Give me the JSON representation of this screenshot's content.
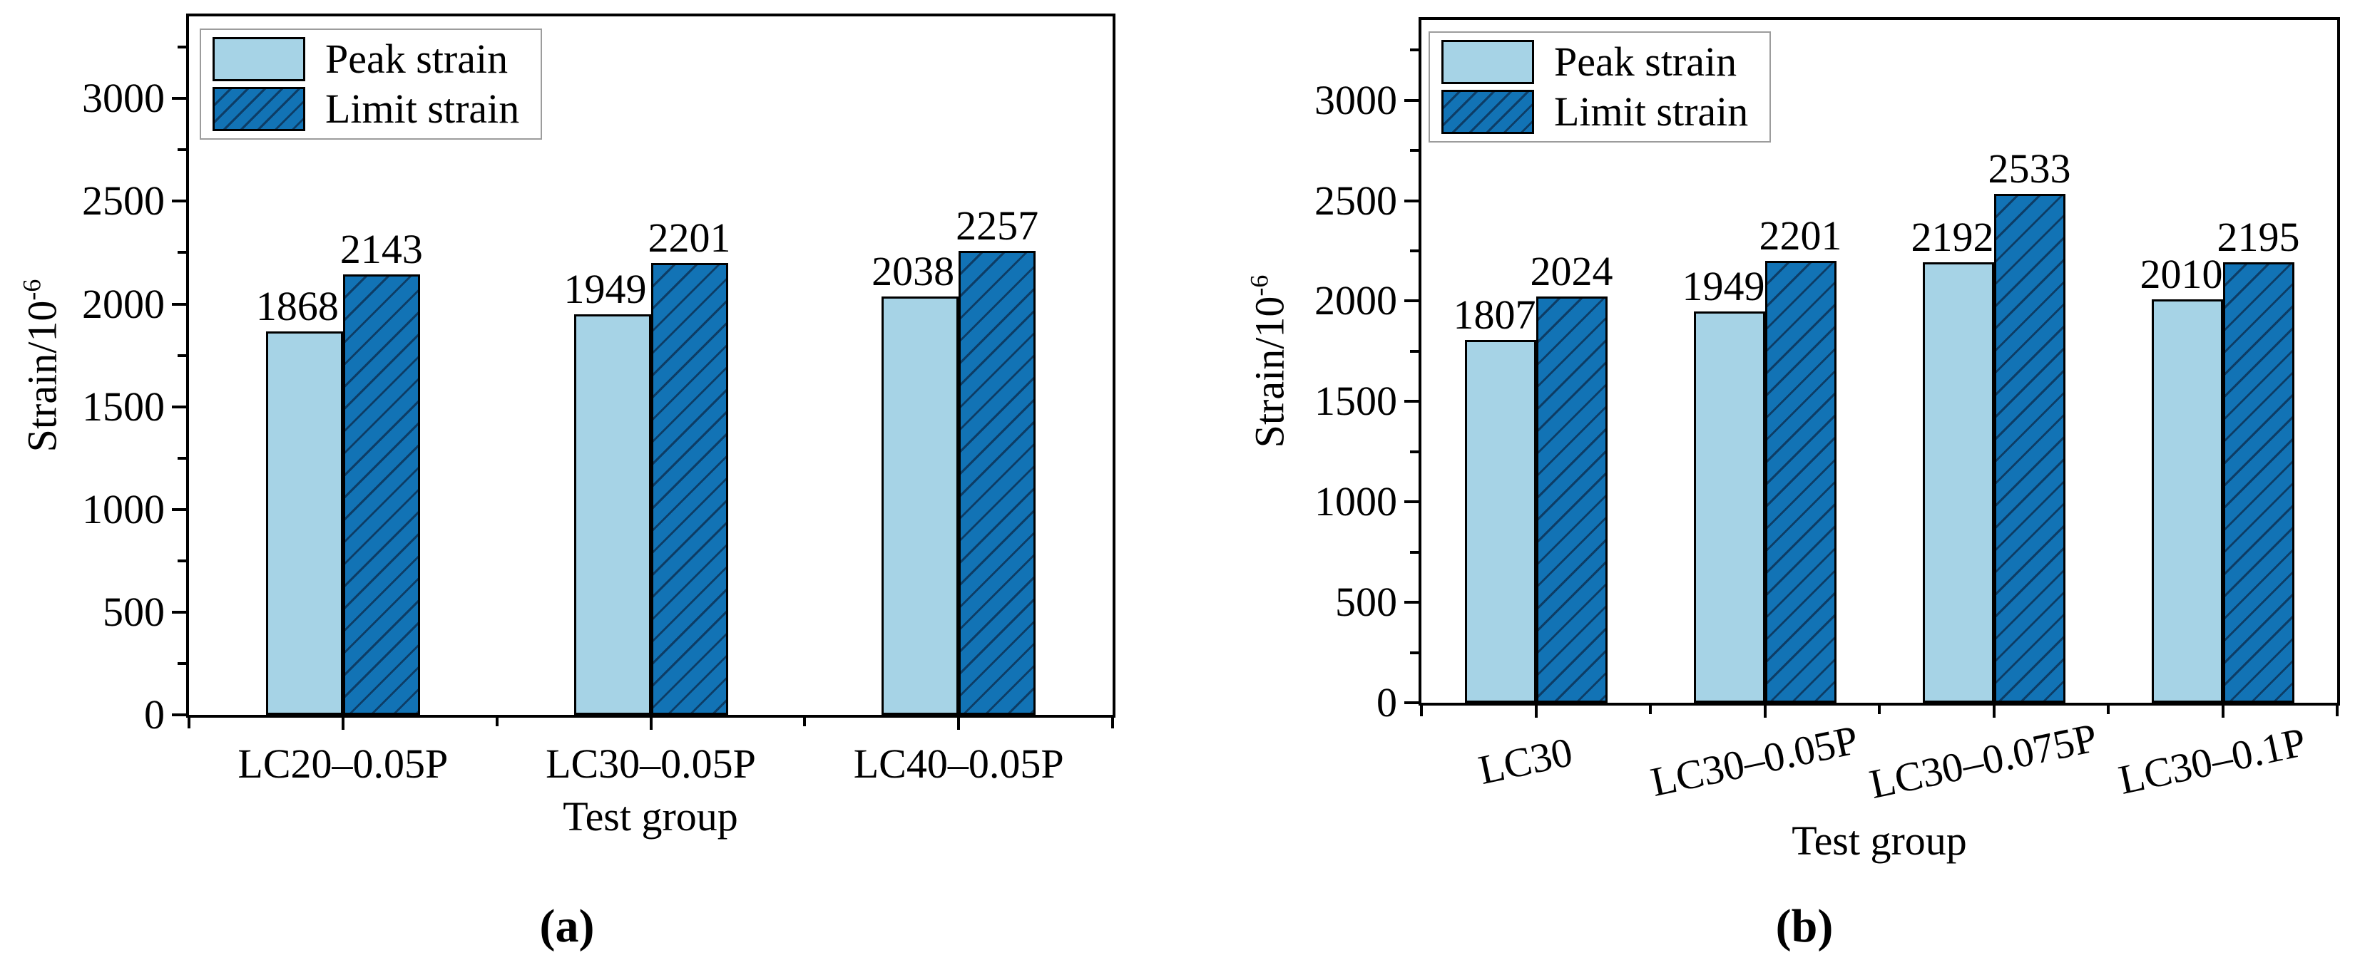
{
  "colors": {
    "peak_fill": "#A6D3E6",
    "limit_fill": "#1273B5",
    "hatch_line": "#0D3D66",
    "axis": "#000000",
    "legend_border": "#9C9C9C"
  },
  "chart_data": [
    {
      "type": "bar",
      "panel_caption": "(a)",
      "xlabel": "Test group",
      "ylabel": "Strain/10⁻⁶",
      "ylabel_base": "Strain/10",
      "ylabel_exponent": "-6",
      "categories": [
        "LC20–0.05P",
        "LC30–0.05P",
        "LC40–0.05P"
      ],
      "series": [
        {
          "name": "Peak strain",
          "style": "solid",
          "values": [
            1868,
            1949,
            2038
          ]
        },
        {
          "name": "Limit strain",
          "style": "hatched",
          "values": [
            2143,
            2201,
            2257
          ]
        }
      ],
      "ylim": [
        0,
        3400
      ],
      "yticks": [
        0,
        500,
        1000,
        1500,
        2000,
        2500,
        3000
      ],
      "y_minor_step": 250,
      "grid": false,
      "legend_position": "top-left",
      "bar_labels": true,
      "xtick_rotation": 0
    },
    {
      "type": "bar",
      "panel_caption": "(b)",
      "xlabel": "Test group",
      "ylabel": "Strain/10⁻⁶",
      "ylabel_base": "Strain/10",
      "ylabel_exponent": "-6",
      "categories": [
        "LC30",
        "LC30–0.05P",
        "LC30–0.075P",
        "LC30–0.1P"
      ],
      "series": [
        {
          "name": "Peak strain",
          "style": "solid",
          "values": [
            1807,
            1949,
            2192,
            2010
          ]
        },
        {
          "name": "Limit strain",
          "style": "hatched",
          "values": [
            2024,
            2201,
            2533,
            2195
          ]
        }
      ],
      "ylim": [
        0,
        3400
      ],
      "yticks": [
        0,
        500,
        1000,
        1500,
        2000,
        2500,
        3000
      ],
      "y_minor_step": 250,
      "grid": false,
      "legend_position": "top-left",
      "bar_labels": true,
      "xtick_rotation": -12
    }
  ]
}
